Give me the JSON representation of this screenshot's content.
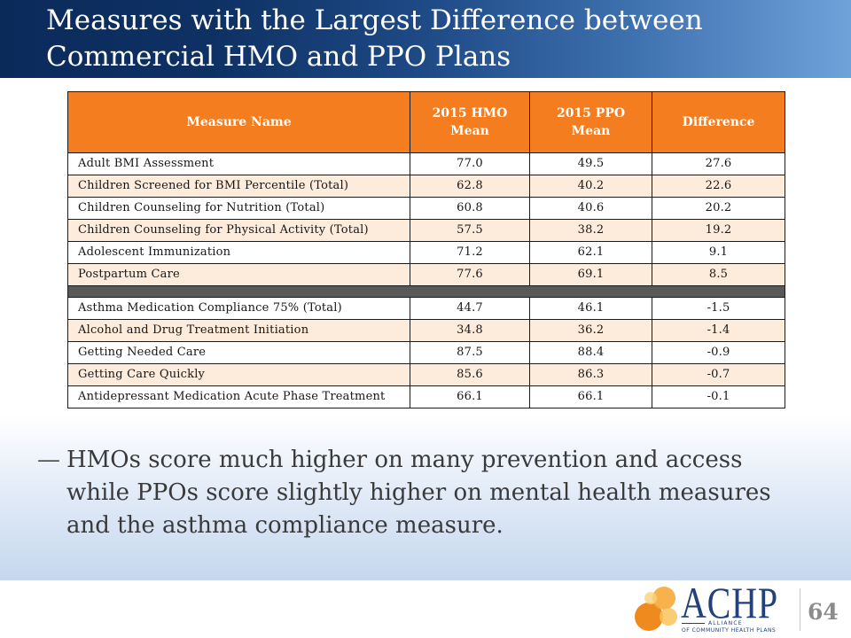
{
  "slide": {
    "title": "Measures with the Largest Difference between Commercial HMO and PPO Plans",
    "page_number": "64"
  },
  "table": {
    "headers": {
      "measure": "Measure Name",
      "hmo": "2015 HMO Mean",
      "ppo": "2015 PPO Mean",
      "diff": "Difference"
    },
    "sections": [
      {
        "rows": [
          {
            "measure": "Adult BMI Assessment",
            "hmo": "77.0",
            "ppo": "49.5",
            "diff": "27.6"
          },
          {
            "measure": "Children Screened for BMI Percentile (Total)",
            "hmo": "62.8",
            "ppo": "40.2",
            "diff": "22.6"
          },
          {
            "measure": "Children Counseling for Nutrition (Total)",
            "hmo": "60.8",
            "ppo": "40.6",
            "diff": "20.2"
          },
          {
            "measure": "Children Counseling for Physical Activity (Total)",
            "hmo": "57.5",
            "ppo": "38.2",
            "diff": "19.2"
          },
          {
            "measure": "Adolescent Immunization",
            "hmo": "71.2",
            "ppo": "62.1",
            "diff": "9.1"
          },
          {
            "measure": "Postpartum Care",
            "hmo": "77.6",
            "ppo": "69.1",
            "diff": "8.5"
          }
        ]
      },
      {
        "rows": [
          {
            "measure": "Asthma Medication Compliance 75% (Total)",
            "hmo": "44.7",
            "ppo": "46.1",
            "diff": "-1.5"
          },
          {
            "measure": "Alcohol and Drug Treatment Initiation",
            "hmo": "34.8",
            "ppo": "36.2",
            "diff": "-1.4"
          },
          {
            "measure": "Getting Needed Care",
            "hmo": "87.5",
            "ppo": "88.4",
            "diff": "-0.9"
          },
          {
            "measure": "Getting Care Quickly",
            "hmo": "85.6",
            "ppo": "86.3",
            "diff": "-0.7"
          },
          {
            "measure": "Antidepressant Medication Acute Phase Treatment",
            "hmo": "66.1",
            "ppo": "66.1",
            "diff": "-0.1"
          }
        ]
      }
    ]
  },
  "bullet": {
    "marker": "—",
    "text": "HMOs score much higher on many prevention and access while PPOs score slightly higher on mental health measures and the asthma compliance measure."
  },
  "logo": {
    "icon": "overlapping-circles-logo-icon",
    "wordmark": "ACHP",
    "tagline_1": "ALLIANCE",
    "tagline_2": "OF COMMUNITY HEALTH PLANS"
  },
  "colors": {
    "header_dark": "#0a2a5a",
    "header_light": "#6fa2d9",
    "table_header": "#f47d20",
    "row_band": "#fdecdc",
    "section_divider": "#595959",
    "brand_navy": "#22407a",
    "background_wash": "#c6d7ee",
    "logo_orange": "#ef8a1f",
    "logo_amber": "#f6a83a",
    "logo_yellow": "#f9c45a"
  }
}
